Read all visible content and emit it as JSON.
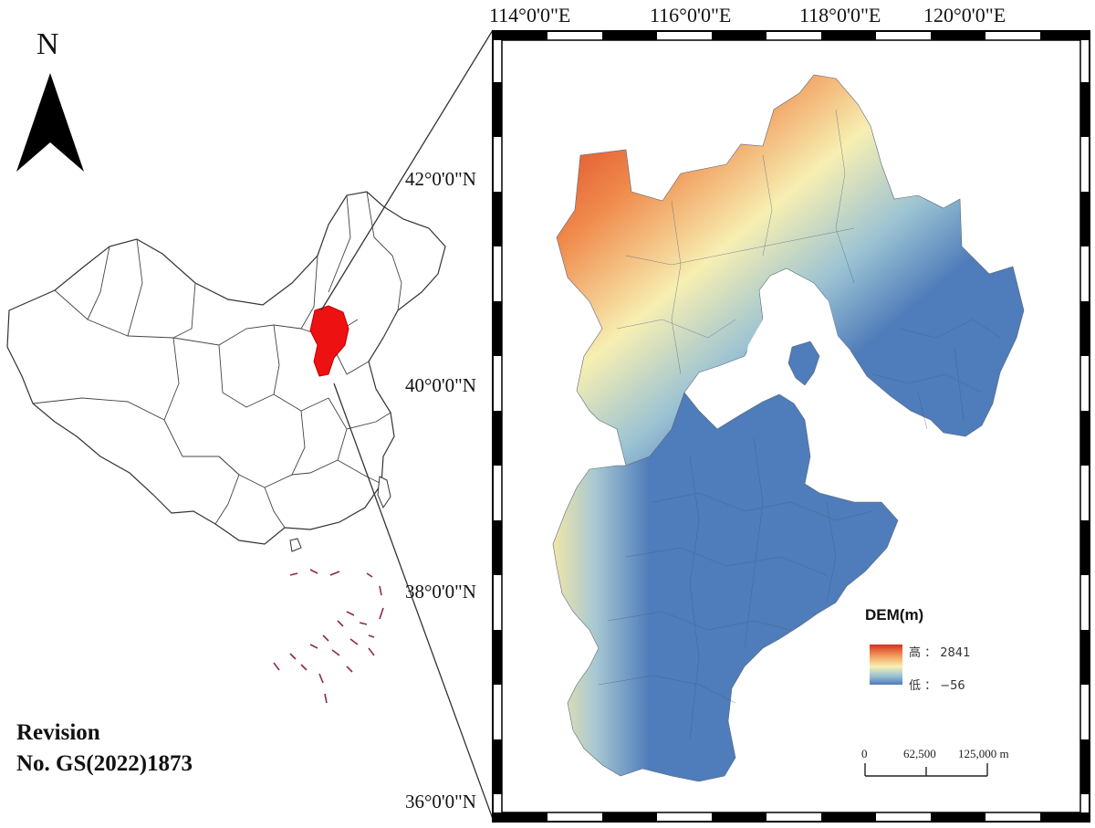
{
  "north_arrow": {
    "label": "N"
  },
  "revision": {
    "line1": "Revision",
    "line2": "No. GS(2022)1873"
  },
  "longitude_labels": [
    "114°0'0\"E",
    "116°0'0\"E",
    "118°0'0\"E",
    "120°0'0\"E"
  ],
  "latitude_labels": [
    "42°0'0\"N",
    "40°0'0\"N",
    "38°0'0\"N",
    "36°0'0\"N"
  ],
  "legend": {
    "title": "DEM(m)",
    "high_label": "高 ： 2841",
    "low_label": "低 ： −56",
    "high_value": 2841,
    "low_value": -56,
    "colors": [
      "#d7301f",
      "#f4a261",
      "#f7f1b5",
      "#9cc3d3",
      "#4f7cba"
    ]
  },
  "scale_bar": {
    "labels": [
      "0",
      "62,500",
      "125,000 m"
    ]
  },
  "colors": {
    "highlight": "#ee1111",
    "low": "#4f7cba",
    "high": "#d93b1e",
    "mid": "#f3efb0"
  }
}
